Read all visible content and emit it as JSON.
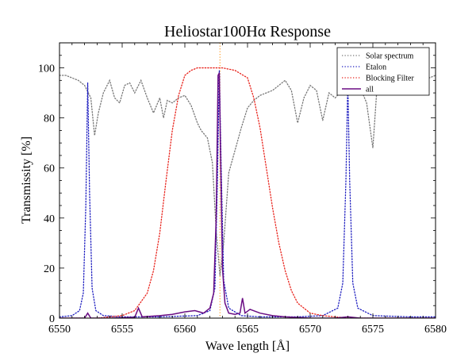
{
  "chart_data": {
    "type": "line",
    "title": "Heliostar100Hα Response",
    "xlabel": "Wave length [Å]",
    "ylabel": "Transmissity [%]",
    "xlim": [
      6550,
      6580
    ],
    "ylim": [
      0,
      110
    ],
    "x_ticks": [
      6550,
      6555,
      6560,
      6565,
      6570,
      6575,
      6580
    ],
    "y_ticks": [
      0,
      20,
      40,
      60,
      80,
      100
    ],
    "grid": false,
    "legend_position": "top-right",
    "reference_line": {
      "x": 6562.8,
      "color": "#ff8c00",
      "style": "dotted"
    },
    "series": [
      {
        "name": "Solar spectrum",
        "color": "#777777",
        "style": "dotted",
        "x": [
          6550,
          6550.5,
          6551,
          6551.5,
          6552,
          6552.5,
          6552.8,
          6553.1,
          6553.5,
          6554,
          6554.4,
          6554.8,
          6555.2,
          6555.6,
          6556,
          6556.5,
          6557,
          6557.5,
          6558,
          6558.3,
          6558.6,
          6559,
          6559.5,
          6560,
          6560.5,
          6561,
          6561.3,
          6561.8,
          6562.2,
          6562.5,
          6562.8,
          6563.1,
          6563.5,
          6564,
          6564.5,
          6565,
          6565.5,
          6566,
          6566.5,
          6567,
          6567.5,
          6568,
          6568.5,
          6569,
          6569.5,
          6570,
          6570.5,
          6571,
          6571.5,
          6572,
          6572.5,
          6573,
          6573.5,
          6574,
          6574.5,
          6575,
          6575.3,
          6575.6,
          6576,
          6577,
          6578,
          6579,
          6580
        ],
        "values": [
          97,
          97,
          96,
          95,
          93,
          88,
          73,
          82,
          90,
          95,
          88,
          86,
          93,
          94,
          90,
          95,
          88,
          82,
          88,
          80,
          87,
          86,
          88,
          89,
          85,
          78,
          75,
          72,
          62,
          35,
          17,
          30,
          58,
          67,
          76,
          84,
          87,
          89,
          90,
          91,
          93,
          95,
          91,
          78,
          88,
          93,
          91,
          79,
          90,
          88,
          91,
          93,
          89,
          92,
          86,
          68,
          90,
          94,
          96,
          96,
          94,
          95,
          97
        ]
      },
      {
        "name": "Etalon",
        "color": "#1f1fc0",
        "style": "dotted",
        "x": [
          6550,
          6551,
          6551.6,
          6551.9,
          6552.1,
          6552.25,
          6552.4,
          6552.6,
          6552.9,
          6553.5,
          6555,
          6558,
          6561,
          6562,
          6562.4,
          6562.6,
          6562.75,
          6562.9,
          6563.1,
          6563.5,
          6564.5,
          6566,
          6569,
          6571,
          6572.2,
          6572.6,
          6572.85,
          6573,
          6573.15,
          6573.4,
          6573.8,
          6575,
          6578,
          6580
        ],
        "values": [
          0.5,
          1,
          3,
          10,
          45,
          94,
          50,
          12,
          3,
          1,
          0.5,
          0.5,
          1,
          3,
          12,
          55,
          99,
          60,
          15,
          4,
          1,
          0.5,
          0.5,
          1,
          4,
          14,
          55,
          94,
          55,
          14,
          4,
          1,
          0.5,
          0.5
        ]
      },
      {
        "name": "Blocking Filter",
        "color": "#e8231c",
        "style": "dotted",
        "x": [
          6550,
          6553,
          6555,
          6556,
          6557,
          6557.5,
          6558,
          6558.5,
          6559,
          6559.5,
          6560,
          6560.5,
          6561,
          6562,
          6563,
          6564,
          6565,
          6565.5,
          6566,
          6566.5,
          6567,
          6567.5,
          6568,
          6568.5,
          6569,
          6570,
          6571,
          6573,
          6575,
          6580
        ],
        "values": [
          0,
          0,
          1,
          3,
          10,
          19,
          34,
          55,
          75,
          89,
          97,
          99,
          100,
          100,
          100,
          99,
          96,
          88,
          76,
          60,
          44,
          30,
          19,
          11,
          6,
          2,
          1,
          0,
          0,
          0
        ]
      },
      {
        "name": "all",
        "color": "#6a0d83",
        "style": "solid",
        "x": [
          6550,
          6552,
          6552.25,
          6552.5,
          6554,
          6556,
          6556.3,
          6556.6,
          6558,
          6559,
          6560,
          6560.8,
          6561.5,
          6562,
          6562.3,
          6562.5,
          6562.65,
          6562.75,
          6562.85,
          6563,
          6563.2,
          6563.5,
          6564,
          6564.4,
          6564.6,
          6564.8,
          6565.2,
          6566,
          6567,
          6568,
          6570,
          6572,
          6573,
          6574,
          6576,
          6580
        ],
        "values": [
          0,
          0,
          2,
          0,
          0,
          0.3,
          4,
          0.5,
          1,
          1.5,
          2.5,
          3,
          2,
          4,
          10,
          40,
          97,
          98,
          65,
          20,
          6,
          2,
          1.5,
          2,
          8,
          2,
          3.5,
          2,
          1,
          0.5,
          0,
          0,
          0.5,
          0,
          0,
          0
        ]
      }
    ]
  }
}
